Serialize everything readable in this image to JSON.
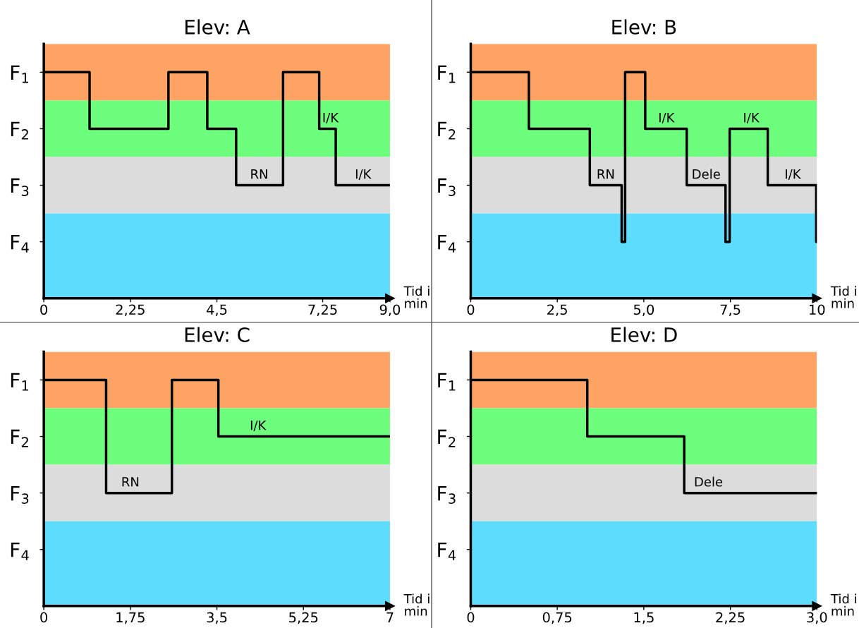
{
  "chart_data": [
    {
      "type": "step",
      "title": "Elev: A",
      "xlabel": "Tid i\nmin",
      "x": [
        0,
        1.19,
        3.24,
        4.25,
        5.0,
        6.22,
        7.16,
        7.59,
        9.0
      ],
      "series": [
        {
          "color": "#000000",
          "line_style": "solid",
          "values": [
            1,
            2,
            1,
            2,
            3,
            1,
            2,
            3,
            3
          ]
        }
      ],
      "xlim": [
        0,
        9
      ],
      "xticks": [
        0,
        {
          "value": 2.25,
          "label": "2,25"
        },
        {
          "value": 4.5,
          "label": "4,5"
        },
        {
          "value": 7.25,
          "label": "7,25"
        },
        {
          "value": 9,
          "label": "9,0"
        }
      ],
      "ylim": [
        5,
        0.5
      ],
      "yticks": [
        {
          "value": 1,
          "label": "F$_{1}$"
        },
        {
          "value": 2,
          "label": "F$_{2}$"
        },
        {
          "value": 3,
          "label": "F$_{3}$"
        },
        {
          "value": 4,
          "label": "F$_{4}$"
        }
      ],
      "bands": [
        {
          "axis": "y",
          "from": 0.5,
          "to": 1.5,
          "color": "#fea363"
        },
        {
          "axis": "y",
          "from": 1.5,
          "to": 2.5,
          "color": "#6efe7e"
        },
        {
          "axis": "y",
          "from": 2.5,
          "to": 3.5,
          "color": "#dcdcdc"
        },
        {
          "axis": "y",
          "from": 3.5,
          "to": 5,
          "color": "#5edcfe"
        }
      ],
      "annotations": [
        {
          "text": "RN",
          "x": 5.6,
          "y": 3
        },
        {
          "text": "I/K",
          "x": 7.45,
          "y": 2
        },
        {
          "text": "I/K",
          "x": 8.3,
          "y": 3
        }
      ]
    },
    {
      "type": "step",
      "title": "Elev: B",
      "xlabel": "Tid i\nmin",
      "x": [
        0,
        1.68,
        3.44,
        4.36,
        4.46,
        5.04,
        6.24,
        7.36,
        7.48,
        8.58,
        9.98,
        10
      ],
      "series": [
        {
          "color": "#000000",
          "line_style": "solid",
          "values": [
            1,
            2,
            3,
            4,
            1,
            2,
            3,
            4,
            2,
            3,
            4,
            4
          ]
        }
      ],
      "xlim": [
        0,
        10
      ],
      "xticks": [
        0,
        {
          "value": 2.5,
          "label": "2,5"
        },
        {
          "value": 5,
          "label": "5,0"
        },
        {
          "value": 7.5,
          "label": "7,5"
        },
        10
      ],
      "ylim": [
        5,
        0.5
      ],
      "yticks": [
        {
          "value": 1,
          "label": "F$_{1}$"
        },
        {
          "value": 2,
          "label": "F$_{2}$"
        },
        {
          "value": 3,
          "label": "F$_{3}$"
        },
        {
          "value": 4,
          "label": "F$_{4}$"
        }
      ],
      "bands": [
        {
          "axis": "y",
          "from": 0.5,
          "to": 1.5,
          "color": "#fea363"
        },
        {
          "axis": "y",
          "from": 1.5,
          "to": 2.5,
          "color": "#6efe7e"
        },
        {
          "axis": "y",
          "from": 2.5,
          "to": 3.5,
          "color": "#dcdcdc"
        },
        {
          "axis": "y",
          "from": 3.5,
          "to": 5,
          "color": "#5edcfe"
        }
      ],
      "annotations": [
        {
          "text": "RN",
          "x": 3.9,
          "y": 3
        },
        {
          "text": "I/K",
          "x": 5.65,
          "y": 2
        },
        {
          "text": "Dele",
          "x": 6.8,
          "y": 3
        },
        {
          "text": "I/K",
          "x": 8.1,
          "y": 2
        },
        {
          "text": "I/K",
          "x": 9.3,
          "y": 3
        }
      ]
    },
    {
      "type": "step",
      "title": "Elev: C",
      "xlabel": "Tid i\nmin",
      "x": [
        0,
        1.26,
        2.59,
        3.53,
        7
      ],
      "series": [
        {
          "color": "#000000",
          "line_style": "solid",
          "values": [
            1,
            3,
            1,
            2,
            2
          ]
        }
      ],
      "xlim": [
        0,
        7
      ],
      "xticks": [
        0,
        {
          "value": 1.75,
          "label": "1,75"
        },
        {
          "value": 3.5,
          "label": "3,5"
        },
        {
          "value": 5.25,
          "label": "5,25"
        },
        7
      ],
      "ylim": [
        5,
        0.5
      ],
      "yticks": [
        {
          "value": 1,
          "label": "F$_{1}$"
        },
        {
          "value": 2,
          "label": "F$_{2}$"
        },
        {
          "value": 3,
          "label": "F$_{3}$"
        },
        {
          "value": 4,
          "label": "F$_{4}$"
        }
      ],
      "bands": [
        {
          "axis": "y",
          "from": 0.5,
          "to": 1.5,
          "color": "#fea363"
        },
        {
          "axis": "y",
          "from": 1.5,
          "to": 2.5,
          "color": "#6efe7e"
        },
        {
          "axis": "y",
          "from": 2.5,
          "to": 3.5,
          "color": "#dcdcdc"
        },
        {
          "axis": "y",
          "from": 3.5,
          "to": 5,
          "color": "#5edcfe"
        }
      ],
      "annotations": [
        {
          "text": "RN",
          "x": 1.75,
          "y": 3
        },
        {
          "text": "I/K",
          "x": 4.33,
          "y": 2
        }
      ]
    },
    {
      "type": "step",
      "title": "Elev: D",
      "xlabel": "Tid i\nmin",
      "x": [
        0,
        1.01,
        1.85,
        3.0
      ],
      "series": [
        {
          "color": "#000000",
          "line_style": "solid",
          "values": [
            1,
            2,
            3,
            3
          ]
        }
      ],
      "xlim": [
        0,
        3
      ],
      "xticks": [
        0,
        {
          "value": 0.75,
          "label": "0,75"
        },
        {
          "value": 1.5,
          "label": "1,5"
        },
        {
          "value": 2.25,
          "label": "2,25"
        },
        {
          "value": 3,
          "label": "3,0"
        }
      ],
      "ylim": [
        5,
        0.5
      ],
      "yticks": [
        {
          "value": 1,
          "label": "F$_{1}$"
        },
        {
          "value": 2,
          "label": "F$_{2}$"
        },
        {
          "value": 3,
          "label": "F$_{3}$"
        },
        {
          "value": 4,
          "label": "F$_{4}$"
        }
      ],
      "bands": [
        {
          "axis": "y",
          "from": 0.5,
          "to": 1.5,
          "color": "#fea363"
        },
        {
          "axis": "y",
          "from": 1.5,
          "to": 2.5,
          "color": "#6efe7e"
        },
        {
          "axis": "y",
          "from": 2.5,
          "to": 3.5,
          "color": "#dcdcdc"
        },
        {
          "axis": "y",
          "from": 3.5,
          "to": 5,
          "color": "#5edcfe"
        }
      ],
      "annotations": [
        {
          "text": "Dele",
          "x": 2.06,
          "y": 3
        }
      ]
    }
  ]
}
